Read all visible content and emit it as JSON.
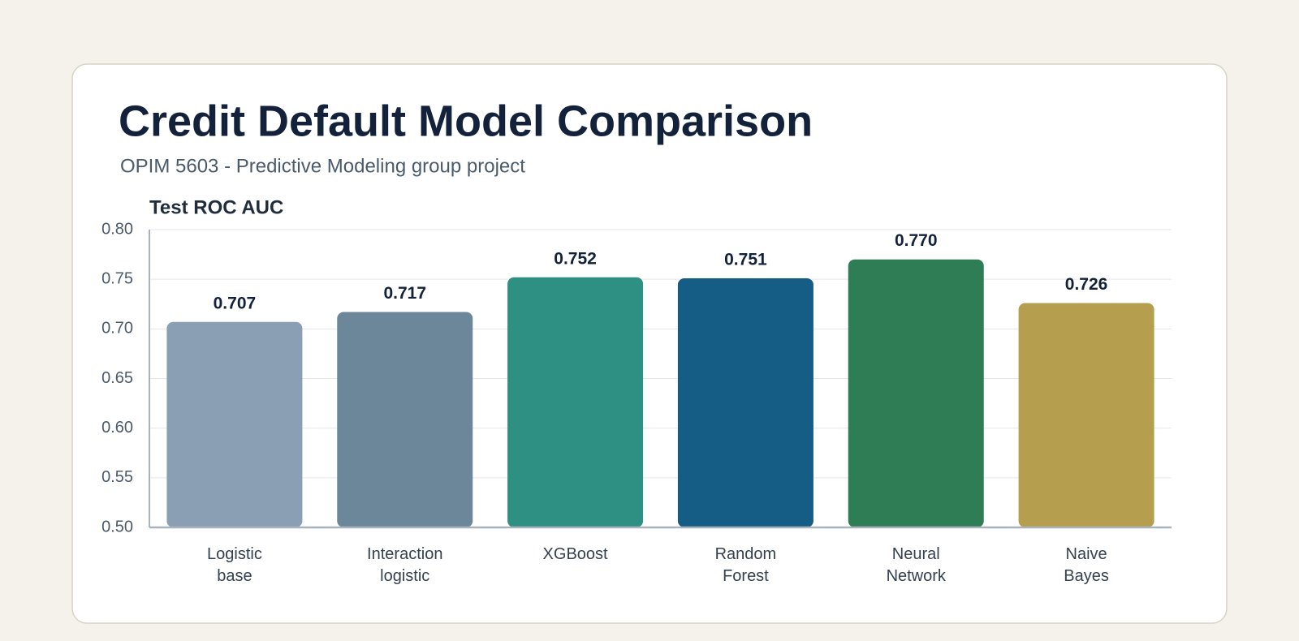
{
  "chart_data": {
    "type": "bar",
    "title": "Credit Default Model Comparison",
    "subtitle": "OPIM 5603 - Predictive Modeling group project",
    "y_label": "Test ROC AUC",
    "categories": [
      "Logistic base",
      "Interaction logistic",
      "XGBoost",
      "Random Forest",
      "Neural Network",
      "Naive Bayes"
    ],
    "values": [
      0.707,
      0.717,
      0.752,
      0.751,
      0.77,
      0.726
    ],
    "value_labels": [
      "0.707",
      "0.717",
      "0.752",
      "0.751",
      "0.770",
      "0.726"
    ],
    "colors": [
      "#8a9eb4",
      "#6b8799",
      "#2e8f83",
      "#165d85",
      "#2e7d55",
      "#b59e4e"
    ],
    "ylim": [
      0.5,
      0.8
    ],
    "yticks": [
      {
        "value": 0.5,
        "label": "0.50"
      },
      {
        "value": 0.55,
        "label": "0.55"
      },
      {
        "value": 0.6,
        "label": "0.60"
      },
      {
        "value": 0.65,
        "label": "0.65"
      },
      {
        "value": 0.7,
        "label": "0.70"
      },
      {
        "value": 0.75,
        "label": "0.75"
      },
      {
        "value": 0.8,
        "label": "0.80"
      }
    ],
    "grid": true
  }
}
